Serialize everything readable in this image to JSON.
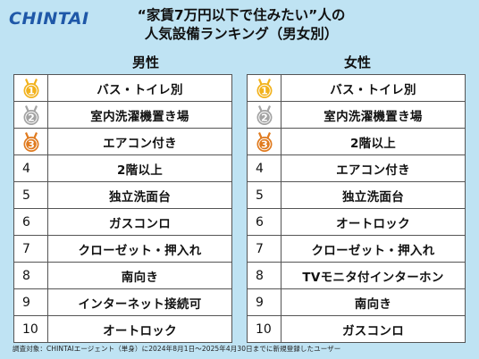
{
  "logo": "CHINTAI",
  "title_line1": "“家賃7万円以下で住みたい”人の",
  "title_line2": "人気設備ランキング（男女別）",
  "male": {
    "heading": "男性",
    "items": [
      "バス・トイレ別",
      "室内洗濯機置き場",
      "エアコン付き",
      "2階以上",
      "独立洗面台",
      "ガスコンロ",
      "クローゼット・押入れ",
      "南向き",
      "インターネット接続可",
      "オートロック"
    ]
  },
  "female": {
    "heading": "女性",
    "items": [
      "バス・トイレ別",
      "室内洗濯機置き場",
      "2階以上",
      "エアコン付き",
      "独立洗面台",
      "オートロック",
      "クローゼット・押入れ",
      "TVモニタ付インターホン",
      "南向き",
      "ガスコンロ"
    ]
  },
  "ranks": [
    "1",
    "2",
    "3",
    "4",
    "5",
    "6",
    "7",
    "8",
    "9",
    "10"
  ],
  "footnote": "調査対象：CHINTAIエージェント（単身）に2024年8月1日～2025年4月30日までに新規登録したユーザー",
  "colors": {
    "gold": "#f2b21c",
    "silver": "#a3a3a3",
    "bronze": "#e07a1e",
    "background": "#bfe3f3",
    "logo": "#1f58a8"
  }
}
